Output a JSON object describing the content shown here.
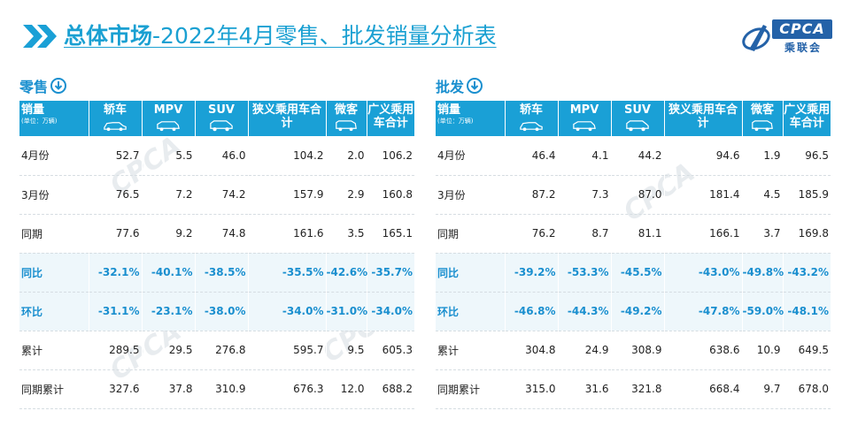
{
  "header": {
    "title_bold": "总体市场",
    "title_rest": "-2022年4月零售、批发销量分析表",
    "logo_text": "CPCA",
    "logo_cn": "乘联会"
  },
  "colors": {
    "accent": "#1aa0d6",
    "pct_row_bg": "#eef7fb",
    "logo_blue": "#2462a8"
  },
  "columns": [
    {
      "label": "销量",
      "sub": "(单位：万辆)",
      "icon": "none"
    },
    {
      "label": "轿车",
      "icon": "sedan-icon"
    },
    {
      "label": "MPV",
      "icon": "mpv-icon"
    },
    {
      "label": "SUV",
      "icon": "suv-icon"
    },
    {
      "label": "狭义乘用车合计",
      "icon": "none"
    },
    {
      "label": "微客",
      "icon": "minivan-icon"
    },
    {
      "label": "广义乘用车合计",
      "icon": "none"
    }
  ],
  "retail": {
    "title": "零售",
    "rows": [
      {
        "label": "4月份",
        "values": [
          "52.7",
          "5.5",
          "46.0",
          "104.2",
          "2.0",
          "106.2"
        ],
        "pct": false
      },
      {
        "label": "3月份",
        "values": [
          "76.5",
          "7.2",
          "74.2",
          "157.9",
          "2.9",
          "160.8"
        ],
        "pct": false
      },
      {
        "label": "同期",
        "values": [
          "77.6",
          "9.2",
          "74.8",
          "161.6",
          "3.5",
          "165.1"
        ],
        "pct": false
      },
      {
        "label": "同比",
        "values": [
          "-32.1%",
          "-40.1%",
          "-38.5%",
          "-35.5%",
          "-42.6%",
          "-35.7%"
        ],
        "pct": true
      },
      {
        "label": "环比",
        "values": [
          "-31.1%",
          "-23.1%",
          "-38.0%",
          "-34.0%",
          "-31.0%",
          "-34.0%"
        ],
        "pct": true
      },
      {
        "label": "累计",
        "values": [
          "289.5",
          "29.5",
          "276.8",
          "595.7",
          "9.5",
          "605.3"
        ],
        "pct": false
      },
      {
        "label": "同期累计",
        "values": [
          "327.6",
          "37.8",
          "310.9",
          "676.3",
          "12.0",
          "688.2"
        ],
        "pct": false
      }
    ]
  },
  "wholesale": {
    "title": "批发",
    "rows": [
      {
        "label": "4月份",
        "values": [
          "46.4",
          "4.1",
          "44.2",
          "94.6",
          "1.9",
          "96.5"
        ],
        "pct": false
      },
      {
        "label": "3月份",
        "values": [
          "87.2",
          "7.3",
          "87.0",
          "181.4",
          "4.5",
          "185.9"
        ],
        "pct": false
      },
      {
        "label": "同期",
        "values": [
          "76.2",
          "8.7",
          "81.1",
          "166.1",
          "3.7",
          "169.8"
        ],
        "pct": false
      },
      {
        "label": "同比",
        "values": [
          "-39.2%",
          "-53.3%",
          "-45.5%",
          "-43.0%",
          "-49.8%",
          "-43.2%"
        ],
        "pct": true
      },
      {
        "label": "环比",
        "values": [
          "-46.8%",
          "-44.3%",
          "-49.2%",
          "-47.8%",
          "-59.0%",
          "-48.1%"
        ],
        "pct": true
      },
      {
        "label": "累计",
        "values": [
          "304.8",
          "24.9",
          "308.9",
          "638.6",
          "10.9",
          "649.5"
        ],
        "pct": false
      },
      {
        "label": "同期累计",
        "values": [
          "315.0",
          "31.6",
          "321.8",
          "668.4",
          "9.7",
          "678.0"
        ],
        "pct": false
      }
    ]
  }
}
